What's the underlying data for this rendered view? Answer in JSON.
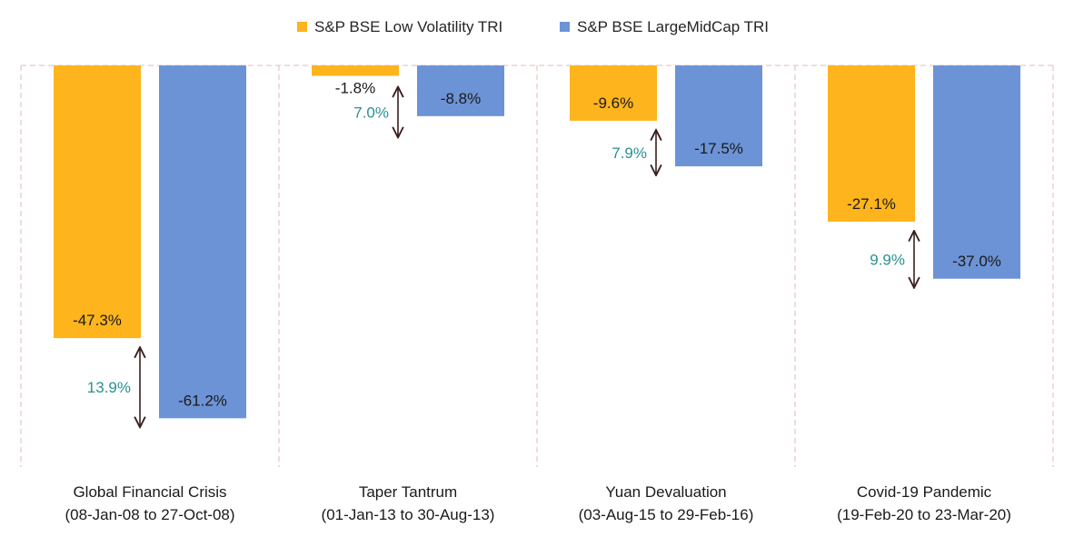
{
  "chart_data": {
    "type": "bar",
    "categories": [
      [
        "Global Financial Crisis",
        "(08-Jan-08 to 27-Oct-08)"
      ],
      [
        "Taper Tantrum",
        "(01-Jan-13 to 30-Aug-13)"
      ],
      [
        "Yuan Devaluation",
        "(03-Aug-15 to 29-Feb-16)"
      ],
      [
        "Covid-19 Pandemic",
        "(19-Feb-20 to 23-Mar-20)"
      ]
    ],
    "series": [
      {
        "name": "S&P BSE Low Volatility TRI",
        "color": "#fdb41d",
        "values": [
          -47.3,
          -1.8,
          -9.6,
          -27.1
        ],
        "labels": [
          "-47.3%",
          "-1.8%",
          "-9.6%",
          "-27.1%"
        ]
      },
      {
        "name": "S&P BSE LargeMidCap TRI",
        "color": "#6c93d6",
        "values": [
          -61.2,
          -8.8,
          -17.5,
          -37.0
        ],
        "labels": [
          "-61.2%",
          "-8.8%",
          "-17.5%",
          "-37.0%"
        ]
      }
    ],
    "differences": {
      "values": [
        13.9,
        7.0,
        7.9,
        9.9
      ],
      "labels": [
        "13.9%",
        "7.0%",
        "7.9%",
        "9.9%"
      ],
      "color": "#2a9090"
    },
    "ylim": [
      -70,
      0
    ],
    "legend_position": "top-center",
    "grid": "vertical dashed separators",
    "title": "",
    "xlabel": "",
    "ylabel": ""
  }
}
